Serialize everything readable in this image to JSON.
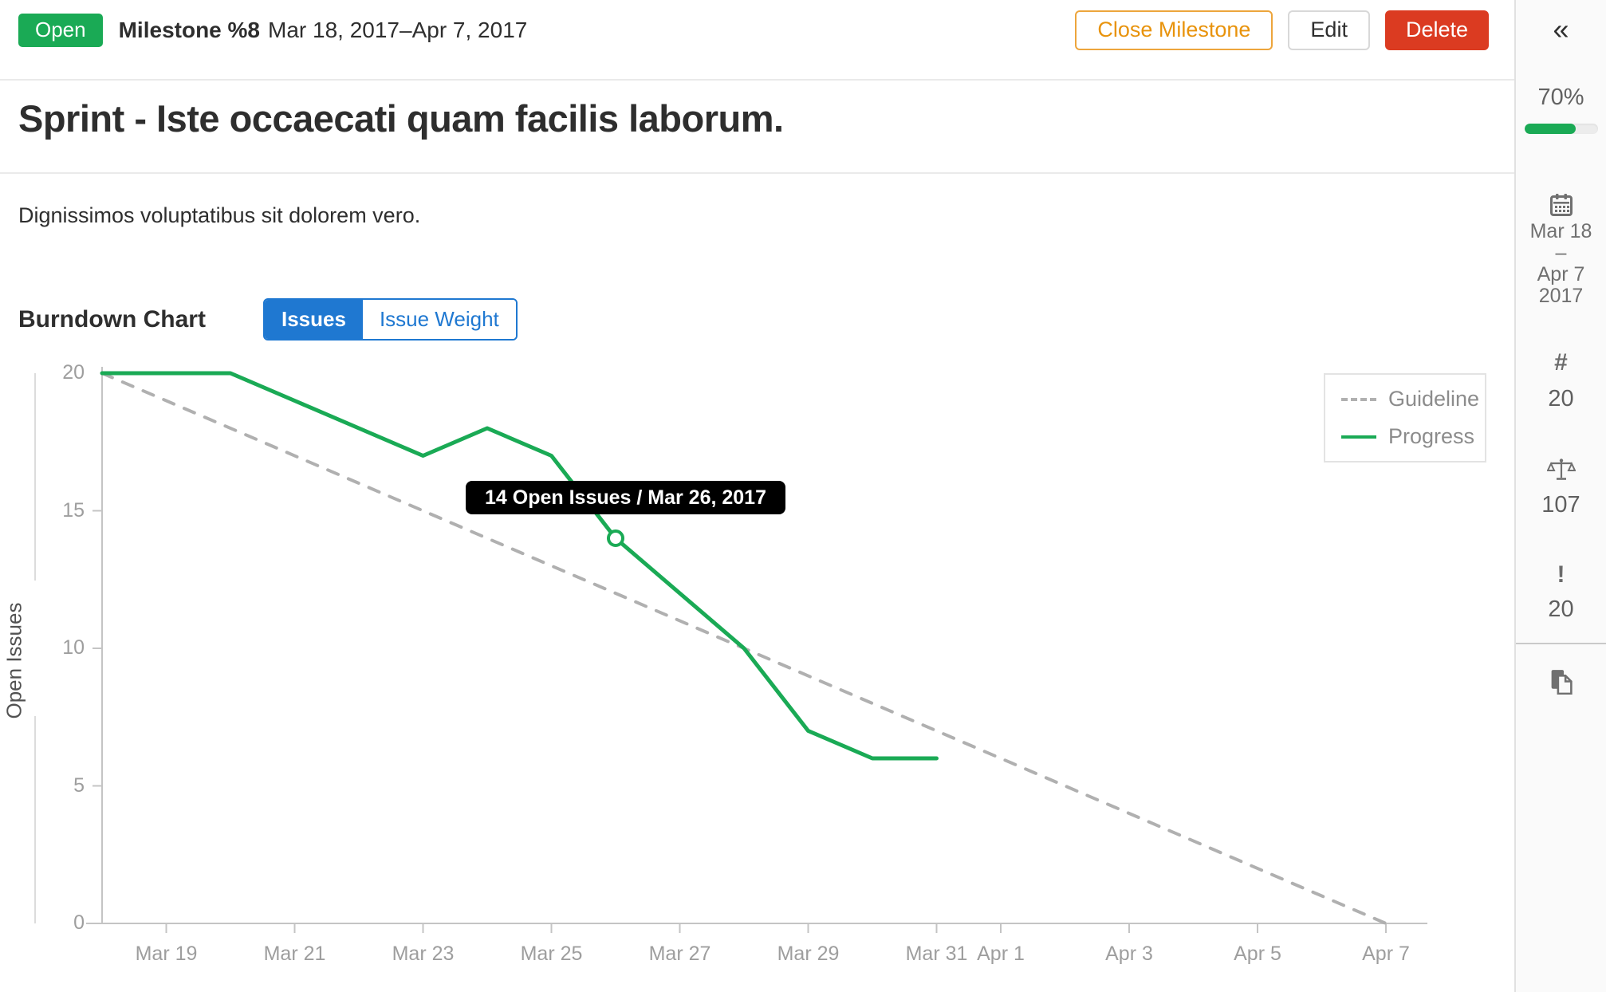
{
  "header": {
    "status_label": "Open",
    "title": "Milestone %8",
    "date_range": "Mar 18, 2017–Apr 7, 2017",
    "buttons": {
      "close": "Close Milestone",
      "edit": "Edit",
      "delete": "Delete"
    }
  },
  "milestone": {
    "title": "Sprint - Iste occaecati quam facilis laborum.",
    "description": "Dignissimos voluptatibus sit dolorem vero."
  },
  "burndown": {
    "heading": "Burndown Chart",
    "toggle": {
      "issues": "Issues",
      "issue_weight": "Issue Weight",
      "active": "Issues"
    }
  },
  "chart_data": {
    "type": "line",
    "title": "Burndown Chart",
    "xlabel": "",
    "ylabel": "Open Issues",
    "ylim": [
      0,
      20
    ],
    "y_ticks": [
      0,
      5,
      10,
      15,
      20
    ],
    "grid": false,
    "legend_position": "top-right",
    "x_start_date": "Mar 18, 2017",
    "x_end_date": "Apr 7, 2017",
    "x_ticks": [
      {
        "label": "Mar 19",
        "day": 1
      },
      {
        "label": "Mar 21",
        "day": 3
      },
      {
        "label": "Mar 23",
        "day": 5
      },
      {
        "label": "Mar 25",
        "day": 7
      },
      {
        "label": "Mar 27",
        "day": 9
      },
      {
        "label": "Mar 29",
        "day": 11
      },
      {
        "label": "Mar 31",
        "day": 13
      },
      {
        "label": "Apr 1",
        "day": 14
      },
      {
        "label": "Apr 3",
        "day": 16
      },
      {
        "label": "Apr 5",
        "day": 18
      },
      {
        "label": "Apr 7",
        "day": 20
      }
    ],
    "series": [
      {
        "name": "Guideline",
        "style": "dashed",
        "color": "#b0b0b0",
        "points": [
          {
            "day": 0,
            "date": "Mar 18",
            "value": 20
          },
          {
            "day": 20,
            "date": "Apr 7",
            "value": 0
          }
        ]
      },
      {
        "name": "Progress",
        "style": "solid",
        "color": "#1aaa55",
        "points": [
          {
            "day": 0,
            "date": "Mar 18",
            "value": 20
          },
          {
            "day": 1,
            "date": "Mar 19",
            "value": 20
          },
          {
            "day": 2,
            "date": "Mar 20",
            "value": 20
          },
          {
            "day": 3,
            "date": "Mar 21",
            "value": 19
          },
          {
            "day": 4,
            "date": "Mar 22",
            "value": 18
          },
          {
            "day": 5,
            "date": "Mar 23",
            "value": 17
          },
          {
            "day": 6,
            "date": "Mar 24",
            "value": 18
          },
          {
            "day": 7,
            "date": "Mar 25",
            "value": 17
          },
          {
            "day": 8,
            "date": "Mar 26",
            "value": 14
          },
          {
            "day": 9,
            "date": "Mar 27",
            "value": 12
          },
          {
            "day": 10,
            "date": "Mar 28",
            "value": 10
          },
          {
            "day": 11,
            "date": "Mar 29",
            "value": 7
          },
          {
            "day": 12,
            "date": "Mar 30",
            "value": 6
          },
          {
            "day": 13,
            "date": "Mar 31",
            "value": 6
          }
        ]
      }
    ],
    "highlight_point": {
      "series": "Progress",
      "day": 8,
      "date": "Mar 26, 2017",
      "value": 14,
      "label": "14 Open Issues / Mar 26, 2017"
    }
  },
  "sidebar": {
    "collapse_icon": "«",
    "progress_percent": "70%",
    "progress_value": 70,
    "date_start": "Mar 18",
    "date_separator": "–",
    "date_end": "Apr 7",
    "date_year": "2017",
    "issues_symbol": "#",
    "issues_count": "20",
    "weight_count": "107",
    "priority_symbol": "!",
    "priority_count": "20"
  },
  "colors": {
    "green": "#1aaa55",
    "blue": "#1f78d1",
    "red": "#db3b21",
    "orange": "#e8930c",
    "sidebar_bg": "#fafafa",
    "axis_gray": "#c4c4c4"
  }
}
